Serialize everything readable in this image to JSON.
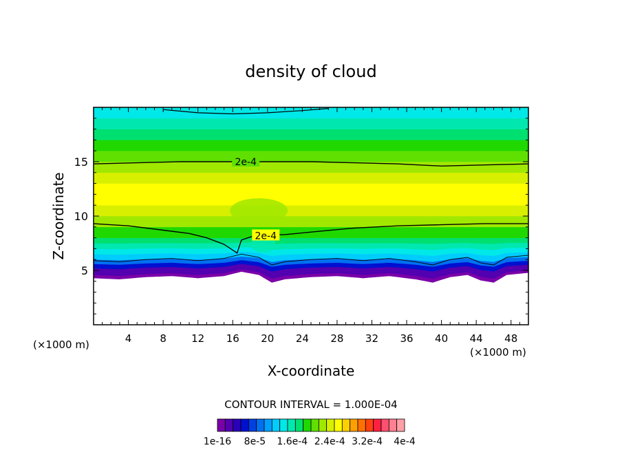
{
  "chart_data": {
    "type": "heatmap",
    "title": "density of cloud",
    "xlabel": "X-coordinate",
    "ylabel": "Z-coordinate",
    "x_unit_left": "(×1000 m)",
    "x_unit_right": "(×1000 m)",
    "xlim": [
      0,
      50
    ],
    "ylim": [
      0,
      20
    ],
    "xticks": [
      4,
      8,
      12,
      16,
      20,
      24,
      28,
      32,
      36,
      40,
      44,
      48
    ],
    "yticks": [
      5,
      10,
      15
    ],
    "contour_interval_text": "CONTOUR INTERVAL = 1.000E-04",
    "contour_labels": [
      {
        "text": "2e-4",
        "x": 17.5,
        "y": 15.0
      },
      {
        "text": "2e-4",
        "x": 19.8,
        "y": 8.2
      }
    ],
    "colorbar": {
      "labels": [
        "1e-16",
        "8e-5",
        "1.6e-4",
        "2.4e-4",
        "3.2e-4",
        "4e-4"
      ],
      "colors": [
        "#7a00a8",
        "#5200b0",
        "#2a00b8",
        "#0010d0",
        "#0040e0",
        "#0070f0",
        "#00a0ff",
        "#00ccff",
        "#00e8e8",
        "#00e8b0",
        "#00e070",
        "#20d800",
        "#60e000",
        "#a0e800",
        "#d8f000",
        "#ffff00",
        "#ffd000",
        "#ffa000",
        "#ff7000",
        "#ff4010",
        "#ff2040",
        "#ff5070",
        "#ff8090",
        "#ffa0a8"
      ]
    },
    "profile_z": [
      4,
      4.6,
      5.2,
      5.6,
      6.0,
      6.5,
      7.0,
      7.5,
      8,
      9,
      10,
      11,
      12,
      13,
      14,
      15,
      16,
      17,
      18,
      19,
      20
    ],
    "profile_value_index": [
      0,
      1,
      3,
      5,
      7,
      8,
      9,
      10,
      11,
      13,
      14,
      15,
      15,
      14,
      13,
      12,
      11,
      10,
      9,
      8,
      7
    ],
    "base_line": [
      [
        0,
        4.3
      ],
      [
        3,
        4.2
      ],
      [
        6,
        4.4
      ],
      [
        9,
        4.5
      ],
      [
        12,
        4.3
      ],
      [
        15,
        4.5
      ],
      [
        17,
        4.9
      ],
      [
        19,
        4.6
      ],
      [
        20.5,
        3.9
      ],
      [
        22,
        4.2
      ],
      [
        25,
        4.4
      ],
      [
        28,
        4.5
      ],
      [
        31,
        4.3
      ],
      [
        34,
        4.5
      ],
      [
        37,
        4.2
      ],
      [
        39,
        3.9
      ],
      [
        41,
        4.4
      ],
      [
        43,
        4.6
      ],
      [
        44.5,
        4.1
      ],
      [
        46,
        3.9
      ],
      [
        47.5,
        4.6
      ],
      [
        50,
        4.8
      ]
    ],
    "contour_lower_2e4": [
      [
        0,
        9.3
      ],
      [
        4,
        9.1
      ],
      [
        8,
        8.7
      ],
      [
        11,
        8.4
      ],
      [
        13,
        8.0
      ],
      [
        15,
        7.4
      ],
      [
        16.5,
        6.6
      ],
      [
        17,
        7.8
      ],
      [
        18.5,
        8.2
      ],
      [
        22,
        8.3
      ],
      [
        26,
        8.6
      ],
      [
        30,
        8.9
      ],
      [
        35,
        9.1
      ],
      [
        40,
        9.2
      ],
      [
        45,
        9.3
      ],
      [
        50,
        9.3
      ]
    ],
    "contour_upper_2e4": [
      [
        0,
        14.8
      ],
      [
        5,
        14.9
      ],
      [
        10,
        15.0
      ],
      [
        15,
        15.0
      ],
      [
        20,
        15.0
      ],
      [
        25,
        15.0
      ],
      [
        30,
        14.9
      ],
      [
        35,
        14.8
      ],
      [
        40,
        14.6
      ],
      [
        45,
        14.7
      ],
      [
        50,
        14.8
      ]
    ],
    "contour_top": [
      [
        8,
        19.8
      ],
      [
        12,
        19.5
      ],
      [
        16,
        19.4
      ],
      [
        20,
        19.5
      ],
      [
        24,
        19.7
      ],
      [
        27,
        19.9
      ]
    ]
  }
}
